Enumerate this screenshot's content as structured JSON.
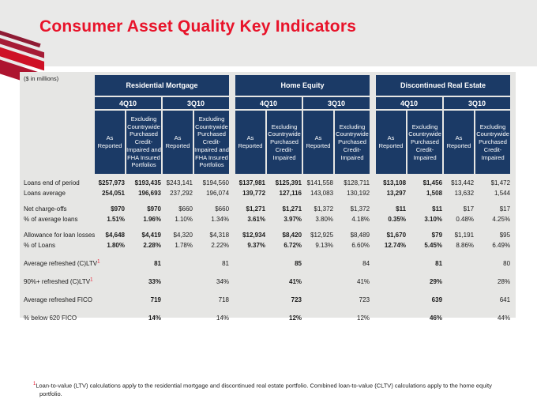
{
  "slide": {
    "title": "Consumer Asset Quality Key Indicators",
    "units_note": "($ in millions)",
    "footnote_sup": "1",
    "footnote": "Loan-to-value (LTV) calculations apply to the residential mortgage and discontinued real estate portfolio. Combined loan-to-value (CLTV) calculations apply to the home equity portfolio."
  },
  "colors": {
    "accent_red": "#e8132a",
    "header_navy": "#1b3a66",
    "panel_gray": "#e6e6e4",
    "band_gray": "#e9e9e8",
    "logo_red_dark": "#8f1b34",
    "logo_red_bright": "#ce1126"
  },
  "icons": {
    "bank_logo": "bank-of-america-flag"
  },
  "table": {
    "groups": [
      {
        "name": "Residential Mortgage",
        "quarters": [
          "4Q10",
          "3Q10"
        ],
        "subcolumns": [
          "As Reported",
          "Excluding Countrywide Purchased Credit-Impaired and FHA Insured Portfolios",
          "As Reported",
          "Excluding Countrywide Purchased Credit-Impaired and FHA Insured Portfolios"
        ]
      },
      {
        "name": "Home Equity",
        "quarters": [
          "4Q10",
          "3Q10"
        ],
        "subcolumns": [
          "As Reported",
          "Excluding Countrywide Purchased Credit-Impaired",
          "As Reported",
          "Excluding Countrywide Purchased Credit-Impaired"
        ]
      },
      {
        "name": "Discontinued Real Estate",
        "quarters": [
          "4Q10",
          "3Q10"
        ],
        "subcolumns": [
          "As Reported",
          "Excluding Countrywide Purchased Credit-Impaired",
          "As Reported",
          "Excluding Countrywide Purchased Credit-Impaired"
        ]
      }
    ],
    "rows": [
      {
        "label": "Loans end of period",
        "values": [
          "$257,973",
          "$193,435",
          "$243,141",
          "$194,560",
          "$137,981",
          "$125,391",
          "$141,558",
          "$128,711",
          "$13,108",
          "$1,456",
          "$13,442",
          "$1,472"
        ]
      },
      {
        "label": "Loans average",
        "values": [
          "254,051",
          "196,693",
          "237,292",
          "196,074",
          "139,772",
          "127,116",
          "143,083",
          "130,192",
          "13,297",
          "1,508",
          "13,632",
          "1,544"
        ]
      },
      {
        "label": "Net charge-offs",
        "values": [
          "$970",
          "$970",
          "$660",
          "$660",
          "$1,271",
          "$1,271",
          "$1,372",
          "$1,372",
          "$11",
          "$11",
          "$17",
          "$17"
        ]
      },
      {
        "label": "% of average loans",
        "values": [
          "1.51%",
          "1.96%",
          "1.10%",
          "1.34%",
          "3.61%",
          "3.97%",
          "3.80%",
          "4.18%",
          "0.35%",
          "3.10%",
          "0.48%",
          "4.25%"
        ]
      },
      {
        "label": "Allowance for loan losses",
        "values": [
          "$4,648",
          "$4,419",
          "$4,320",
          "$4,318",
          "$12,934",
          "$8,420",
          "$12,925",
          "$8,489",
          "$1,670",
          "$79",
          "$1,191",
          "$95"
        ]
      },
      {
        "label": "% of Loans",
        "values": [
          "1.80%",
          "2.28%",
          "1.78%",
          "2.22%",
          "9.37%",
          "6.72%",
          "9.13%",
          "6.60%",
          "12.74%",
          "5.45%",
          "8.86%",
          "6.49%"
        ]
      },
      {
        "label": "Average refreshed (C)LTV",
        "sup": "1",
        "values": [
          "",
          "81",
          "",
          "81",
          "",
          "85",
          "",
          "84",
          "",
          "81",
          "",
          "80"
        ]
      },
      {
        "label": "90%+ refreshed (C)LTV",
        "sup": "1",
        "values": [
          "",
          "33%",
          "",
          "34%",
          "",
          "41%",
          "",
          "41%",
          "",
          "29%",
          "",
          "28%"
        ]
      },
      {
        "label": "Average refreshed FICO",
        "values": [
          "",
          "719",
          "",
          "718",
          "",
          "723",
          "",
          "723",
          "",
          "639",
          "",
          "641"
        ]
      },
      {
        "label": "% below 620 FICO",
        "values": [
          "",
          "14%",
          "",
          "14%",
          "",
          "12%",
          "",
          "12%",
          "",
          "46%",
          "",
          "44%"
        ]
      }
    ]
  }
}
